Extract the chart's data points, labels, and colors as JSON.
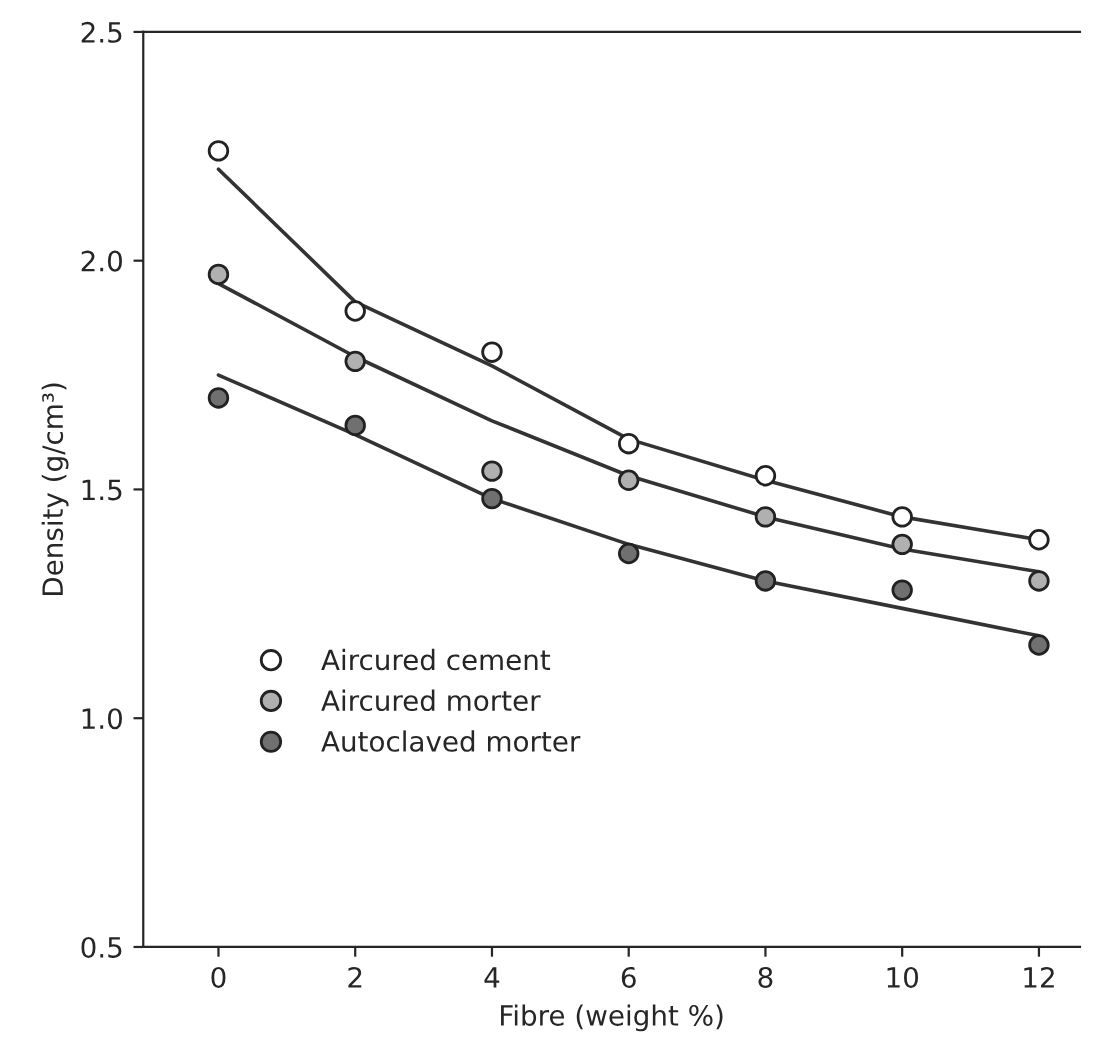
{
  "chart_data": {
    "type": "scatter",
    "xlabel": "Fibre (weight %)",
    "ylabel": "Density (g/cm³)",
    "xlim": [
      -1.1,
      12.6
    ],
    "ylim": [
      0.5,
      2.5
    ],
    "xticks": [
      0,
      2,
      4,
      6,
      8,
      10,
      12
    ],
    "yticks": [
      {
        "value": 0.5,
        "label": "0.5"
      },
      {
        "value": 1.0,
        "label": "1.0"
      },
      {
        "value": 1.5,
        "label": "1.5"
      },
      {
        "value": 2.0,
        "label": "2.0"
      },
      {
        "value": 2.5,
        "label": "2.5"
      }
    ],
    "grid": false,
    "legend": "lower left",
    "marker": "circle",
    "series": [
      {
        "name": "Aircured cement",
        "color": "#ffffff",
        "x": [
          0,
          2,
          4,
          6,
          8,
          10,
          12
        ],
        "values": [
          2.24,
          1.89,
          1.8,
          1.6,
          1.53,
          1.44,
          1.39
        ]
      },
      {
        "name": "Aircured morter",
        "color": "#b0b0b0",
        "x": [
          0,
          2,
          4,
          6,
          8,
          10,
          12
        ],
        "values": [
          1.97,
          1.78,
          1.54,
          1.52,
          1.44,
          1.38,
          1.3
        ]
      },
      {
        "name": "Autoclaved morter",
        "color": "#707070",
        "x": [
          0,
          2,
          4,
          6,
          8,
          10,
          12
        ],
        "values": [
          1.7,
          1.64,
          1.48,
          1.36,
          1.3,
          1.28,
          1.16
        ]
      },
      {
        "type": "line",
        "color": "#333333",
        "marker": "none",
        "x": [
          0,
          2,
          4,
          6,
          8,
          10,
          12
        ],
        "values": [
          2.2,
          1.91,
          1.77,
          1.61,
          1.52,
          1.44,
          1.39
        ]
      },
      {
        "type": "line",
        "color": "#333333",
        "marker": "none",
        "x": [
          0,
          2,
          4,
          6,
          8,
          10,
          12
        ],
        "values": [
          1.95,
          1.79,
          1.65,
          1.53,
          1.44,
          1.37,
          1.32
        ]
      },
      {
        "type": "line",
        "color": "#333333",
        "marker": "none",
        "x": [
          0,
          2,
          4,
          6,
          8,
          10,
          12
        ],
        "values": [
          1.75,
          1.62,
          1.48,
          1.38,
          1.3,
          1.24,
          1.18
        ]
      }
    ]
  }
}
